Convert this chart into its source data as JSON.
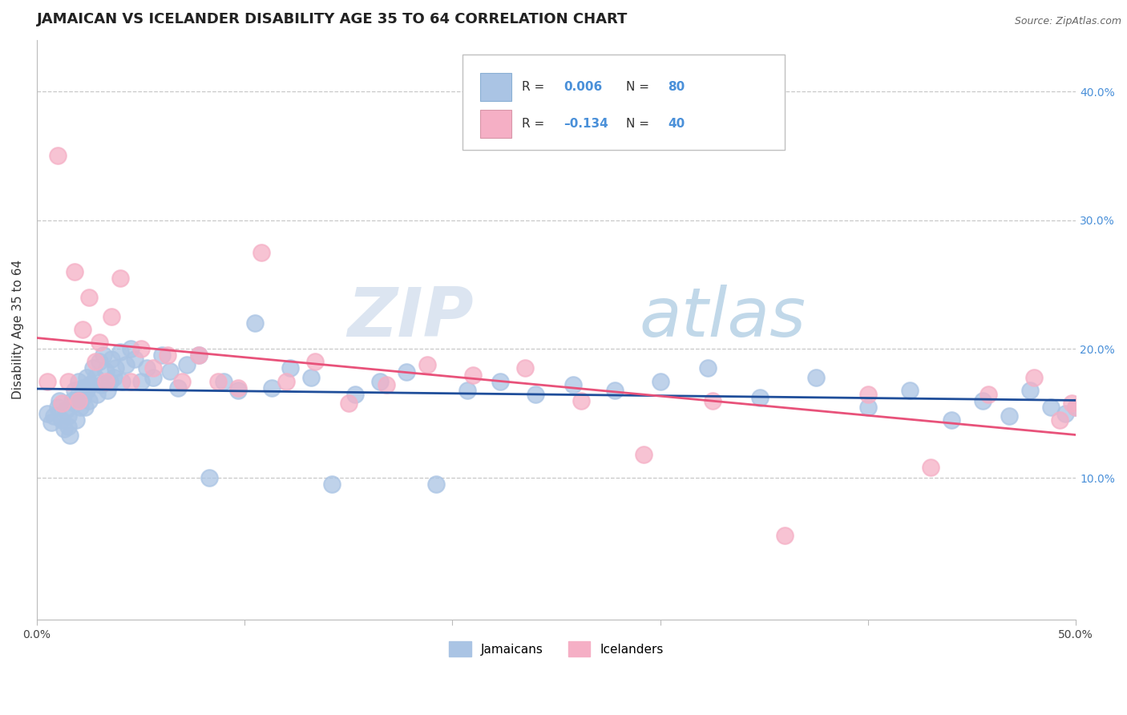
{
  "title": "JAMAICAN VS ICELANDER DISABILITY AGE 35 TO 64 CORRELATION CHART",
  "source_text": "Source: ZipAtlas.com",
  "ylabel": "Disability Age 35 to 64",
  "xlim": [
    0.0,
    0.5
  ],
  "ylim": [
    -0.01,
    0.44
  ],
  "ytick_positions": [
    0.1,
    0.2,
    0.3,
    0.4
  ],
  "ytick_labels": [
    "10.0%",
    "20.0%",
    "30.0%",
    "40.0%"
  ],
  "group1_color": "#aac4e4",
  "group2_color": "#f5afc5",
  "line1_color": "#1f4e9a",
  "line2_color": "#e8527a",
  "watermark_zip": "ZIP",
  "watermark_atlas": "atlas",
  "legend_label1": "Jamaicans",
  "legend_label2": "Icelanders",
  "title_fontsize": 13,
  "axis_label_fontsize": 11,
  "tick_fontsize": 10,
  "jamaican_x": [
    0.005,
    0.007,
    0.008,
    0.01,
    0.011,
    0.012,
    0.013,
    0.014,
    0.015,
    0.015,
    0.016,
    0.017,
    0.018,
    0.018,
    0.019,
    0.02,
    0.02,
    0.021,
    0.022,
    0.022,
    0.023,
    0.024,
    0.024,
    0.025,
    0.026,
    0.027,
    0.028,
    0.029,
    0.03,
    0.031,
    0.032,
    0.033,
    0.034,
    0.035,
    0.036,
    0.037,
    0.038,
    0.04,
    0.041,
    0.043,
    0.045,
    0.047,
    0.05,
    0.053,
    0.056,
    0.06,
    0.064,
    0.068,
    0.072,
    0.078,
    0.083,
    0.09,
    0.097,
    0.105,
    0.113,
    0.122,
    0.132,
    0.142,
    0.153,
    0.165,
    0.178,
    0.192,
    0.207,
    0.223,
    0.24,
    0.258,
    0.278,
    0.3,
    0.323,
    0.348,
    0.375,
    0.4,
    0.42,
    0.44,
    0.455,
    0.468,
    0.478,
    0.488,
    0.495,
    0.5
  ],
  "jamaican_y": [
    0.15,
    0.143,
    0.148,
    0.155,
    0.16,
    0.145,
    0.138,
    0.152,
    0.148,
    0.14,
    0.133,
    0.16,
    0.168,
    0.158,
    0.145,
    0.165,
    0.175,
    0.155,
    0.17,
    0.162,
    0.155,
    0.168,
    0.178,
    0.16,
    0.173,
    0.185,
    0.178,
    0.165,
    0.19,
    0.172,
    0.195,
    0.183,
    0.168,
    0.175,
    0.192,
    0.178,
    0.185,
    0.198,
    0.175,
    0.188,
    0.2,
    0.192,
    0.175,
    0.185,
    0.178,
    0.195,
    0.183,
    0.17,
    0.188,
    0.195,
    0.1,
    0.175,
    0.168,
    0.22,
    0.17,
    0.185,
    0.178,
    0.095,
    0.165,
    0.175,
    0.182,
    0.095,
    0.168,
    0.175,
    0.165,
    0.172,
    0.168,
    0.175,
    0.185,
    0.162,
    0.178,
    0.155,
    0.168,
    0.145,
    0.16,
    0.148,
    0.168,
    0.155,
    0.15,
    0.155
  ],
  "icelander_x": [
    0.005,
    0.01,
    0.012,
    0.015,
    0.018,
    0.02,
    0.022,
    0.025,
    0.028,
    0.03,
    0.033,
    0.036,
    0.04,
    0.045,
    0.05,
    0.056,
    0.063,
    0.07,
    0.078,
    0.087,
    0.097,
    0.108,
    0.12,
    0.134,
    0.15,
    0.168,
    0.188,
    0.21,
    0.235,
    0.262,
    0.292,
    0.325,
    0.36,
    0.4,
    0.43,
    0.458,
    0.48,
    0.492,
    0.498,
    0.5
  ],
  "icelander_y": [
    0.175,
    0.35,
    0.158,
    0.175,
    0.26,
    0.16,
    0.215,
    0.24,
    0.19,
    0.205,
    0.175,
    0.225,
    0.255,
    0.175,
    0.2,
    0.185,
    0.195,
    0.175,
    0.195,
    0.175,
    0.17,
    0.275,
    0.175,
    0.19,
    0.158,
    0.172,
    0.188,
    0.18,
    0.185,
    0.16,
    0.118,
    0.16,
    0.055,
    0.165,
    0.108,
    0.165,
    0.178,
    0.145,
    0.158,
    0.155
  ]
}
